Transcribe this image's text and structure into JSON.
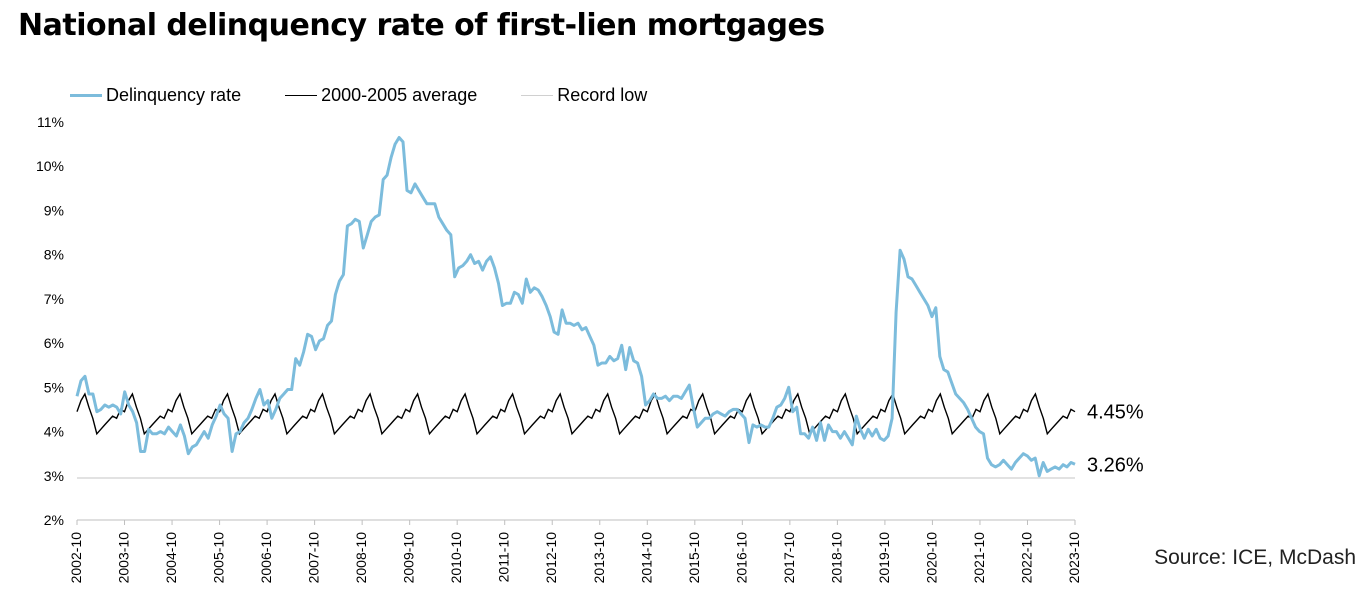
{
  "title": "National delinquency rate of first-lien mortgages",
  "source": "Source: ICE, McDash",
  "colors": {
    "delinquency": "#7cbcdc",
    "average": "#000000",
    "record_low": "#d0d0d0",
    "axis": "#bfbfbf"
  },
  "chart_data": {
    "type": "line",
    "title": "National delinquency rate of first-lien mortgages",
    "xlabel": "",
    "ylabel": "",
    "ylim": [
      2,
      11
    ],
    "yticks": [
      "2%",
      "3%",
      "4%",
      "5%",
      "6%",
      "7%",
      "8%",
      "9%",
      "10%",
      "11%"
    ],
    "x_start": "2002-10",
    "x_end": "2023-10",
    "xticks": [
      "2002-10",
      "2003-10",
      "2004-10",
      "2005-10",
      "2006-10",
      "2007-10",
      "2008-10",
      "2009-10",
      "2010-10",
      "2011-10",
      "2012-10",
      "2013-10",
      "2014-10",
      "2015-10",
      "2016-10",
      "2017-10",
      "2018-10",
      "2019-10",
      "2020-10",
      "2021-10",
      "2022-10",
      "2023-10"
    ],
    "legend_position": "top-left",
    "grid": false,
    "end_labels": {
      "average": "4.45%",
      "delinquency": "3.26%"
    },
    "series": [
      {
        "name": "Delinquency rate",
        "frequency": "monthly",
        "values": [
          4.8,
          5.15,
          5.25,
          4.85,
          4.85,
          4.45,
          4.5,
          4.6,
          4.55,
          4.6,
          4.55,
          4.4,
          4.9,
          4.6,
          4.45,
          4.2,
          3.55,
          3.55,
          4.05,
          3.95,
          3.95,
          4.0,
          3.95,
          4.1,
          4.0,
          3.9,
          4.15,
          3.9,
          3.5,
          3.65,
          3.7,
          3.85,
          4.0,
          3.85,
          4.15,
          4.35,
          4.6,
          4.4,
          4.3,
          3.55,
          3.95,
          4.0,
          4.2,
          4.3,
          4.5,
          4.75,
          4.95,
          4.6,
          4.7,
          4.3,
          4.5,
          4.75,
          4.85,
          4.95,
          4.95,
          5.65,
          5.5,
          5.8,
          6.2,
          6.15,
          5.85,
          6.05,
          6.1,
          6.4,
          6.5,
          7.1,
          7.4,
          7.55,
          8.65,
          8.7,
          8.8,
          8.75,
          8.15,
          8.45,
          8.75,
          8.85,
          8.9,
          9.7,
          9.8,
          10.2,
          10.5,
          10.65,
          10.55,
          9.45,
          9.4,
          9.6,
          9.45,
          9.3,
          9.15,
          9.15,
          9.15,
          8.85,
          8.7,
          8.55,
          8.45,
          7.5,
          7.7,
          7.75,
          7.85,
          8.0,
          7.8,
          7.85,
          7.65,
          7.85,
          7.95,
          7.7,
          7.35,
          6.85,
          6.9,
          6.9,
          7.15,
          7.1,
          6.9,
          7.45,
          7.15,
          7.25,
          7.2,
          7.05,
          6.85,
          6.6,
          6.25,
          6.2,
          6.75,
          6.45,
          6.45,
          6.4,
          6.45,
          6.3,
          6.35,
          6.15,
          5.95,
          5.5,
          5.55,
          5.55,
          5.7,
          5.6,
          5.65,
          5.95,
          5.4,
          5.9,
          5.6,
          5.55,
          5.25,
          4.6,
          4.7,
          4.85,
          4.75,
          4.75,
          4.8,
          4.7,
          4.8,
          4.8,
          4.75,
          4.9,
          5.05,
          4.55,
          4.1,
          4.2,
          4.3,
          4.3,
          4.4,
          4.45,
          4.4,
          4.35,
          4.45,
          4.5,
          4.5,
          4.4,
          4.3,
          3.75,
          4.15,
          4.1,
          4.15,
          4.1,
          4.1,
          4.3,
          4.55,
          4.6,
          4.75,
          5.0,
          4.45,
          4.55,
          3.95,
          3.95,
          3.85,
          4.1,
          3.8,
          4.2,
          3.8,
          4.15,
          4.0,
          4.0,
          3.85,
          4.0,
          3.85,
          3.7,
          4.35,
          4.05,
          3.85,
          4.05,
          3.9,
          4.05,
          3.85,
          3.8,
          3.9,
          4.3,
          6.7,
          8.1,
          7.9,
          7.5,
          7.45,
          7.3,
          7.15,
          7.0,
          6.85,
          6.6,
          6.8,
          5.7,
          5.4,
          5.35,
          5.1,
          4.85,
          4.75,
          4.65,
          4.5,
          4.3,
          4.1,
          4.0,
          3.95,
          3.4,
          3.25,
          3.2,
          3.25,
          3.35,
          3.25,
          3.15,
          3.3,
          3.4,
          3.5,
          3.45,
          3.35,
          3.4,
          3.0,
          3.3,
          3.1,
          3.15,
          3.2,
          3.15,
          3.25,
          3.2,
          3.3,
          3.26
        ]
      },
      {
        "name": "2000-2005 average",
        "frequency": "monthly",
        "seasonal_pattern_oct_to_sep": [
          4.45,
          4.7,
          4.85,
          4.55,
          4.3,
          3.95,
          4.05,
          4.15,
          4.25,
          4.35,
          4.3,
          4.5
        ],
        "last_value": 4.45
      },
      {
        "name": "Record low",
        "value": 2.95
      }
    ]
  }
}
